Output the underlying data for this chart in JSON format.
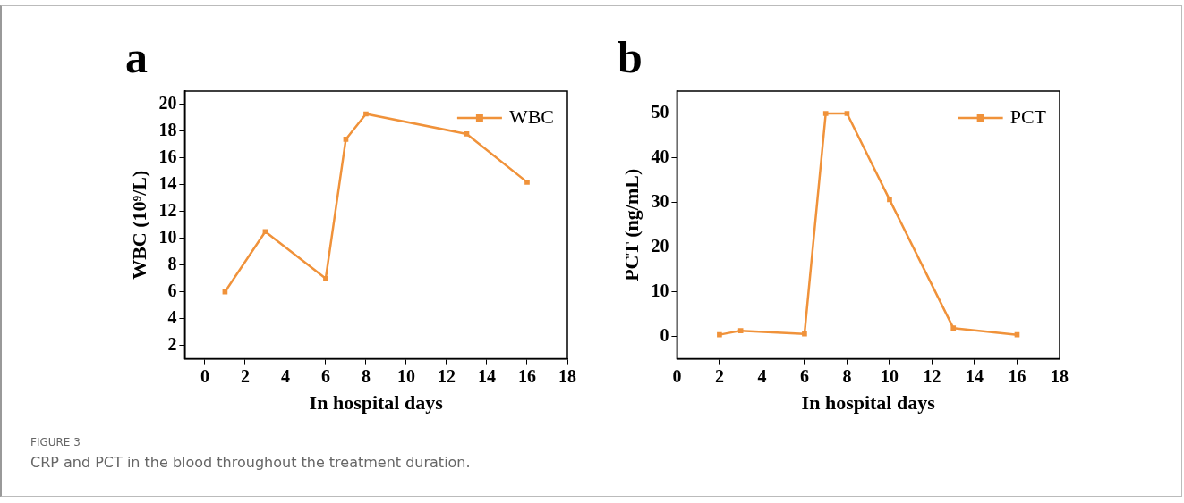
{
  "chart_data": [
    {
      "type": "line",
      "title": "a",
      "xlabel": "In hospital days",
      "ylabel": "WBC (10⁹/L)",
      "x": [
        1,
        3,
        6,
        7,
        8,
        13,
        16
      ],
      "series": [
        {
          "name": "WBC",
          "color": "#f0923a",
          "values": [
            6.0,
            10.5,
            7.0,
            17.4,
            19.3,
            17.8,
            14.2
          ]
        }
      ],
      "xlim": [
        -1,
        18
      ],
      "xticks": [
        0,
        2,
        4,
        6,
        8,
        10,
        12,
        14,
        16,
        18
      ],
      "ylim": [
        1,
        21
      ],
      "yticks": [
        2,
        4,
        6,
        8,
        10,
        12,
        14,
        16,
        18,
        20
      ],
      "grid": false,
      "legend": "top right",
      "marker": "square",
      "line_style": "solid",
      "annotations": [
        "FIGURE 3",
        "CRP and PCT in the blood throughout the treatment duration."
      ]
    },
    {
      "type": "line",
      "title": "b",
      "xlabel": "In hospital days",
      "ylabel": "PCT (ng/mL)",
      "x": [
        2,
        3,
        6,
        7,
        8,
        10,
        13,
        16
      ],
      "series": [
        {
          "name": "PCT",
          "color": "#f0923a",
          "values": [
            0.4,
            1.3,
            0.6,
            50,
            50,
            30.7,
            1.9,
            0.4
          ]
        }
      ],
      "xlim": [
        0,
        18
      ],
      "xticks": [
        0,
        2,
        4,
        6,
        8,
        10,
        12,
        14,
        16,
        18
      ],
      "ylim": [
        -5,
        55
      ],
      "yticks": [
        0,
        10,
        20,
        30,
        40,
        50
      ],
      "grid": false,
      "legend": "top right",
      "marker": "square",
      "line_style": "solid"
    }
  ]
}
